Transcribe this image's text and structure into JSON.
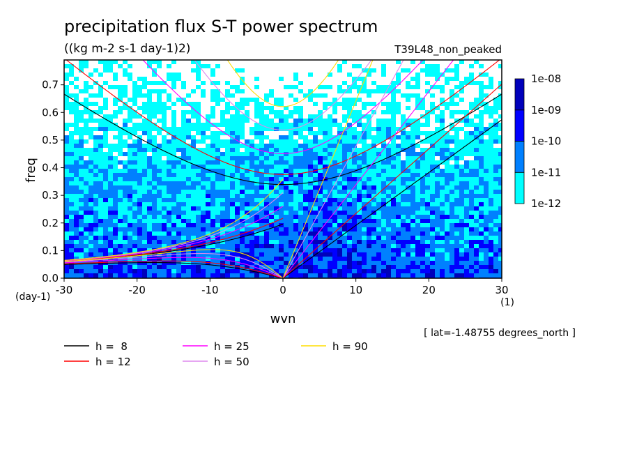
{
  "chart_data": {
    "type": "heatmap",
    "title": "precipitation flux S-T power spectrum",
    "subtitle": "((kg m-2 s-1 day-1)2)",
    "run_label": "T39L48_non_peaked",
    "xlabel": "wvn",
    "ylabel": "freq",
    "x_units": "(1)",
    "y_units": "(day-1)",
    "annotation": "[ lat=-1.48755 degrees_north ]",
    "xlim": [
      -30,
      30
    ],
    "ylim": [
      0,
      0.79
    ],
    "x_ticks": [
      -30,
      -20,
      -10,
      0,
      10,
      20,
      30
    ],
    "x_tick_labels": [
      "-30",
      "-20",
      "-10",
      "0",
      "10",
      "20",
      "30"
    ],
    "y_ticks": [
      0.0,
      0.1,
      0.2,
      0.3,
      0.4,
      0.5,
      0.6,
      0.7
    ],
    "y_tick_labels": [
      "0.0",
      "0.1",
      "0.2",
      "0.3",
      "0.4",
      "0.5",
      "0.6",
      "0.7"
    ],
    "grid": false,
    "colorbar": {
      "scale": "log",
      "levels": [
        "1e-12",
        "1e-11",
        "1e-10",
        "1e-09",
        "1e-08"
      ],
      "colors": [
        "#00ffff",
        "#0080ff",
        "#0000ff",
        "#0000bb",
        "#5000cc"
      ]
    },
    "field_colors": {
      "white": "#ffffff",
      "level1": "#00ffff",
      "level2": "#0080ff",
      "level3": "#0000ff",
      "level4": "#0000bb"
    },
    "series": [
      {
        "name": "h =  8",
        "equivalent_depth_m": 8,
        "color": "#000000"
      },
      {
        "name": "h = 12",
        "equivalent_depth_m": 12,
        "color": "#ff0000"
      },
      {
        "name": "h = 25",
        "equivalent_depth_m": 25,
        "color": "#ff00ff"
      },
      {
        "name": "h = 50",
        "equivalent_depth_m": 50,
        "color": "#dd88ee"
      },
      {
        "name": "h = 90",
        "equivalent_depth_m": 90,
        "color": "#ffdd00"
      }
    ]
  }
}
